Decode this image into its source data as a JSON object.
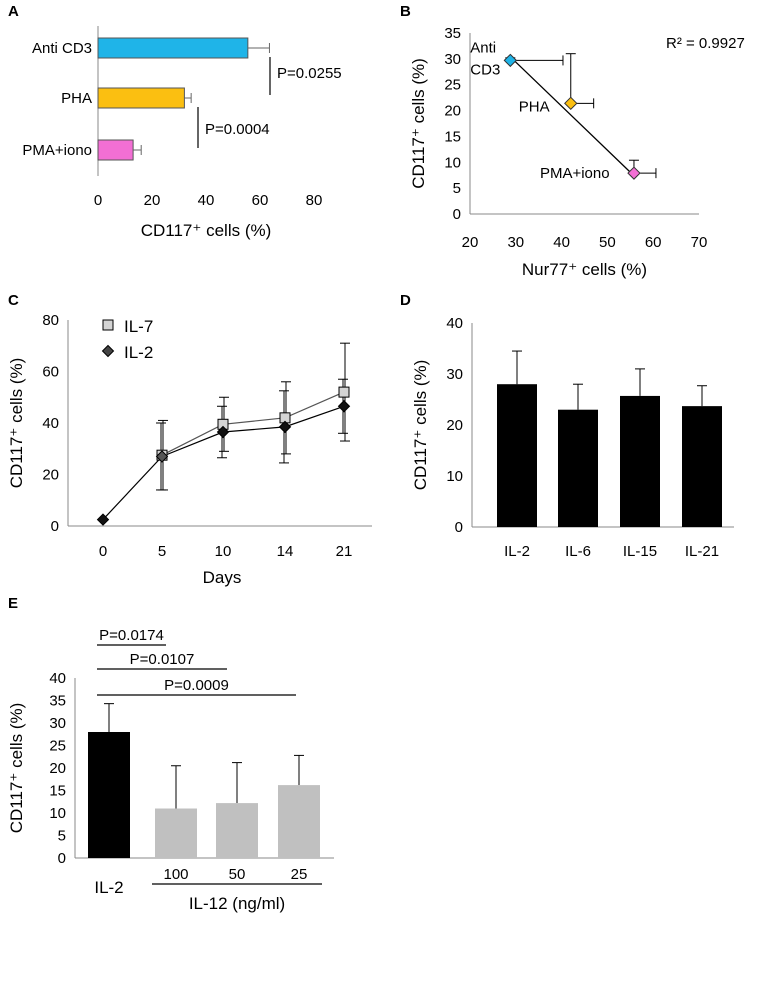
{
  "figure": {
    "panel_labels": [
      "A",
      "B",
      "C",
      "D",
      "E"
    ]
  },
  "chart_data": [
    {
      "panel": "A",
      "type": "bar",
      "orientation": "horizontal",
      "categories": [
        "Anti CD3",
        "PHA",
        "PMA+iono"
      ],
      "values": [
        55.5,
        32,
        13
      ],
      "errors": [
        8,
        2.5,
        3
      ],
      "bar_colors": [
        "#1fb4e8",
        "#fbbf11",
        "#f26fd4"
      ],
      "xlabel": "CD117⁺ cells (%)",
      "xlim": [
        0,
        80
      ],
      "xticks": [
        "0",
        "20",
        "40",
        "60",
        "80"
      ],
      "annotations": [
        {
          "text": "P=0.0255",
          "between": [
            "Anti CD3",
            "PHA"
          ]
        },
        {
          "text": "P=0.0004",
          "between": [
            "PHA",
            "PMA+iono"
          ]
        }
      ]
    },
    {
      "panel": "B",
      "type": "scatter",
      "points": [
        {
          "label": "Anti CD3",
          "label_lines": [
            "Anti",
            "CD3"
          ],
          "x": 28.8,
          "y": 29.7,
          "xerr": 11.5,
          "yerr": 0.5,
          "color": "#1fb4e8"
        },
        {
          "label": "PHA",
          "label_lines": [
            "PHA"
          ],
          "x": 42,
          "y": 21.4,
          "xerr": 5,
          "yerr": 9.6,
          "color": "#fbbf11"
        },
        {
          "label": "PMA+iono",
          "label_lines": [
            "PMA+iono"
          ],
          "x": 55.8,
          "y": 7.9,
          "xerr": 4.8,
          "yerr": 2.5,
          "color": "#f26fd4"
        }
      ],
      "trendline": {
        "x": [
          28.8,
          55.8
        ],
        "y": [
          30.4,
          7.4
        ]
      },
      "r2_text": "R² = 0.9927",
      "xlabel": "Nur77⁺ cells (%)",
      "ylabel": "CD117⁺ cells (%)",
      "xlim": [
        20,
        70
      ],
      "ylim": [
        0,
        35
      ],
      "xticks": [
        "20",
        "30",
        "40",
        "50",
        "60",
        "70"
      ],
      "yticks": [
        "0",
        "5",
        "10",
        "15",
        "20",
        "25",
        "30",
        "35"
      ]
    },
    {
      "panel": "C",
      "type": "line",
      "x": [
        0,
        5,
        10,
        14,
        21
      ],
      "series": [
        {
          "name": "IL-7",
          "marker": "square",
          "values": [
            null,
            27.5,
            39.5,
            42,
            52
          ],
          "errors": [
            null,
            13.5,
            10.5,
            14,
            19
          ]
        },
        {
          "name": "IL-2",
          "marker": "diamond",
          "values": [
            2.5,
            27,
            36.5,
            38.5,
            46.5
          ],
          "errors": [
            null,
            13,
            10,
            14,
            10.5
          ]
        }
      ],
      "xlabel": "Days",
      "ylabel": "CD117⁺ cells (%)",
      "ylim": [
        0,
        80
      ],
      "xticks": [
        "0",
        "5",
        "10",
        "14",
        "21"
      ],
      "yticks": [
        "0",
        "20",
        "40",
        "60",
        "80"
      ]
    },
    {
      "panel": "D",
      "type": "bar",
      "categories": [
        "IL-2",
        "IL-6",
        "IL-15",
        "IL-21"
      ],
      "values": [
        28,
        23,
        25.7,
        23.7
      ],
      "errors": [
        6.5,
        5,
        5.3,
        4
      ],
      "bar_color": "#000000",
      "ylabel": "CD117⁺ cells (%)",
      "ylim": [
        0,
        40
      ],
      "yticks": [
        "0",
        "10",
        "20",
        "30",
        "40"
      ]
    },
    {
      "panel": "E",
      "type": "bar",
      "categories": [
        "IL-2",
        "100",
        "50",
        "25"
      ],
      "values": [
        28,
        11,
        12.2,
        16.2
      ],
      "errors": [
        6.3,
        9.5,
        9,
        6.6
      ],
      "bar_colors": [
        "#000000",
        "#c0c0c0",
        "#c0c0c0",
        "#c0c0c0"
      ],
      "group_label": "IL-12 (ng/ml)",
      "ylabel": "CD117⁺ cells (%)",
      "ylim": [
        0,
        40
      ],
      "yticks": [
        "0",
        "5",
        "10",
        "15",
        "20",
        "25",
        "30",
        "35",
        "40"
      ],
      "annotations": [
        {
          "text": "P=0.0174",
          "from": "IL-2",
          "to": "100"
        },
        {
          "text": "P=0.0107",
          "from": "IL-2",
          "to": "50"
        },
        {
          "text": "P=0.0009",
          "from": "IL-2",
          "to": "25"
        }
      ]
    }
  ]
}
